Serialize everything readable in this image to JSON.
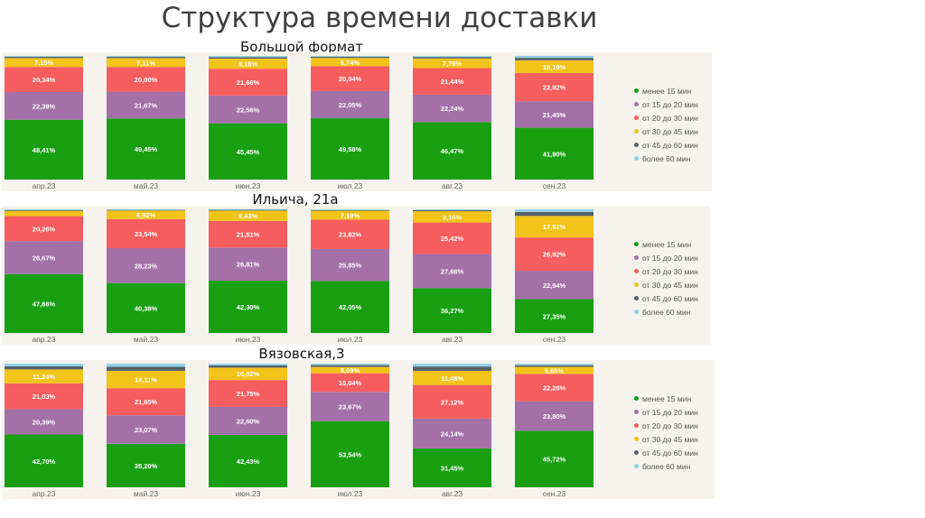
{
  "page_title": "Структура времени доставки",
  "colors": {
    "lt15": "#18a012",
    "15_20": "#a470a8",
    "20_30": "#f65d5e",
    "30_45": "#f2c318",
    "45_60": "#56606a",
    "gt60": "#8fd2e6"
  },
  "legend": [
    {
      "key": "lt15",
      "label": "менее 15 мин"
    },
    {
      "key": "15_20",
      "label": "от 15 до 20 мин"
    },
    {
      "key": "20_30",
      "label": "от 20 до 30 мин"
    },
    {
      "key": "30_45",
      "label": "от 30 до 45 мин"
    },
    {
      "key": "45_60",
      "label": "от 45 до 60 мин"
    },
    {
      "key": "gt60",
      "label": "более 60 мин"
    }
  ],
  "chart_data": [
    {
      "type": "bar",
      "stacked": true,
      "title": "Большой формат",
      "categories": [
        "апр.23",
        "май.23",
        "июн.23",
        "июл.23",
        "авг.23",
        "сен.23"
      ],
      "series": [
        {
          "key": "lt15",
          "name": "менее 15 мин",
          "values": [
            48.41,
            49.45,
            45.45,
            49.58,
            46.47,
            41.9
          ],
          "labels": [
            "48,41%",
            "49,45%",
            "45,45%",
            "49,58%",
            "46,47%",
            "41,90%"
          ]
        },
        {
          "key": "15_20",
          "name": "от 15 до 20 мин",
          "values": [
            22.39,
            21.67,
            22.56,
            22.05,
            22.24,
            21.45
          ],
          "labels": [
            "22,39%",
            "21,67%",
            "22,56%",
            "22,05%",
            "22,24%",
            "21,45%"
          ]
        },
        {
          "key": "20_30",
          "name": "от 20 до 30 мин",
          "values": [
            20.34,
            20.0,
            21.66,
            20.04,
            21.44,
            22.92
          ],
          "labels": [
            "20,34%",
            "20,00%",
            "21,66%",
            "20,04%",
            "21,44%",
            "22,92%"
          ]
        },
        {
          "key": "30_45",
          "name": "от 30 до 45 мин",
          "values": [
            7.15,
            7.11,
            8.18,
            6.74,
            7.79,
            10.19
          ],
          "labels": [
            "7,15%",
            "7,11%",
            "8,18%",
            "6,74%",
            "7,79%",
            "10,19%"
          ]
        },
        {
          "key": "45_60",
          "name": "от 45 до 60 мин",
          "values": [
            1.0,
            1.0,
            1.2,
            0.9,
            1.2,
            2.0
          ],
          "labels": [
            "",
            "",
            "",
            "",
            "",
            ""
          ]
        },
        {
          "key": "gt60",
          "name": "более 60 мин",
          "values": [
            0.7,
            0.8,
            0.95,
            0.69,
            0.86,
            1.64
          ],
          "labels": [
            "",
            "",
            "",
            "",
            "",
            ""
          ]
        }
      ],
      "ylim": [
        0,
        100
      ],
      "legend_position": "right"
    },
    {
      "type": "bar",
      "stacked": true,
      "title": "Ильича, 21а",
      "categories": [
        "апр.23",
        "май.23",
        "июн.23",
        "июл.23",
        "авг.23",
        "сен.23"
      ],
      "series": [
        {
          "key": "lt15",
          "name": "менее 15 мин",
          "values": [
            47.66,
            40.38,
            42.3,
            42.05,
            36.27,
            27.35
          ],
          "labels": [
            "47,66%",
            "40,38%",
            "42,30%",
            "42,05%",
            "36,27%",
            "27,35%"
          ]
        },
        {
          "key": "15_20",
          "name": "от 15 до 20 мин",
          "values": [
            26.67,
            28.23,
            26.81,
            25.85,
            27.66,
            22.94
          ],
          "labels": [
            "26,67%",
            "28,23%",
            "26,81%",
            "25,85%",
            "27,66%",
            "22,94%"
          ]
        },
        {
          "key": "20_30",
          "name": "от 20 до 30 мин",
          "values": [
            20.26,
            23.54,
            21.51,
            23.82,
            25.42,
            26.92
          ],
          "labels": [
            "20,26%",
            "23,54%",
            "21,51%",
            "23,82%",
            "25,42%",
            "26,92%"
          ]
        },
        {
          "key": "30_45",
          "name": "от 30 до 45 мин",
          "values": [
            4.2,
            6.92,
            8.43,
            7.19,
            9.15,
            17.51
          ],
          "labels": [
            "",
            "6,92%",
            "8,43%",
            "7,19%",
            "9,15%",
            "17,51%"
          ]
        },
        {
          "key": "45_60",
          "name": "от 45 до 60 мин",
          "values": [
            0.7,
            0.5,
            0.6,
            0.5,
            0.9,
            3.2
          ],
          "labels": [
            "",
            "",
            "",
            "",
            "",
            ""
          ]
        },
        {
          "key": "gt60",
          "name": "более 60 мин",
          "values": [
            0.51,
            0.43,
            0.35,
            0.59,
            0.6,
            2.08
          ],
          "labels": [
            "",
            "",
            "",
            "",
            "",
            ""
          ]
        }
      ],
      "ylim": [
        0,
        100
      ],
      "legend_position": "right"
    },
    {
      "type": "bar",
      "stacked": true,
      "title": "Вязовская,3",
      "categories": [
        "апр.23",
        "май.23",
        "июн.23",
        "июл.23",
        "авг.23",
        "сен.23"
      ],
      "series": [
        {
          "key": "lt15",
          "name": "менее 15 мин",
          "values": [
            42.7,
            35.2,
            42.43,
            53.54,
            31.45,
            45.72
          ],
          "labels": [
            "42,70%",
            "35,20%",
            "42,43%",
            "53,54%",
            "31,45%",
            "45,72%"
          ]
        },
        {
          "key": "15_20",
          "name": "от 15 до 20 мин",
          "values": [
            20.39,
            23.07,
            22.6,
            23.67,
            24.14,
            23.8
          ],
          "labels": [
            "20,39%",
            "23,07%",
            "22,60%",
            "23,67%",
            "24,14%",
            "23,80%"
          ]
        },
        {
          "key": "20_30",
          "name": "от 20 до 30 мин",
          "values": [
            21.03,
            21.85,
            21.75,
            15.04,
            27.12,
            22.26
          ],
          "labels": [
            "21,03%",
            "21,85%",
            "21,75%",
            "15,04%",
            "27,12%",
            "22,26%"
          ]
        },
        {
          "key": "30_45",
          "name": "от 30 до 45 мин",
          "values": [
            11.24,
            14.11,
            10.02,
            5.09,
            11.48,
            5.65
          ],
          "labels": [
            "11,24%",
            "14,11%",
            "10,02%",
            "5,09%",
            "11,48%",
            "5,65%"
          ]
        },
        {
          "key": "45_60",
          "name": "от 45 до 60 мин",
          "values": [
            2.5,
            3.2,
            1.8,
            1.5,
            3.5,
            1.3
          ],
          "labels": [
            "",
            "",
            "",
            "",
            "",
            ""
          ]
        },
        {
          "key": "gt60",
          "name": "более 60 мин",
          "values": [
            2.14,
            2.57,
            1.4,
            1.16,
            2.31,
            1.27
          ],
          "labels": [
            "",
            "",
            "",
            "",
            "",
            ""
          ]
        }
      ],
      "ylim": [
        0,
        100
      ],
      "legend_position": "right"
    }
  ]
}
